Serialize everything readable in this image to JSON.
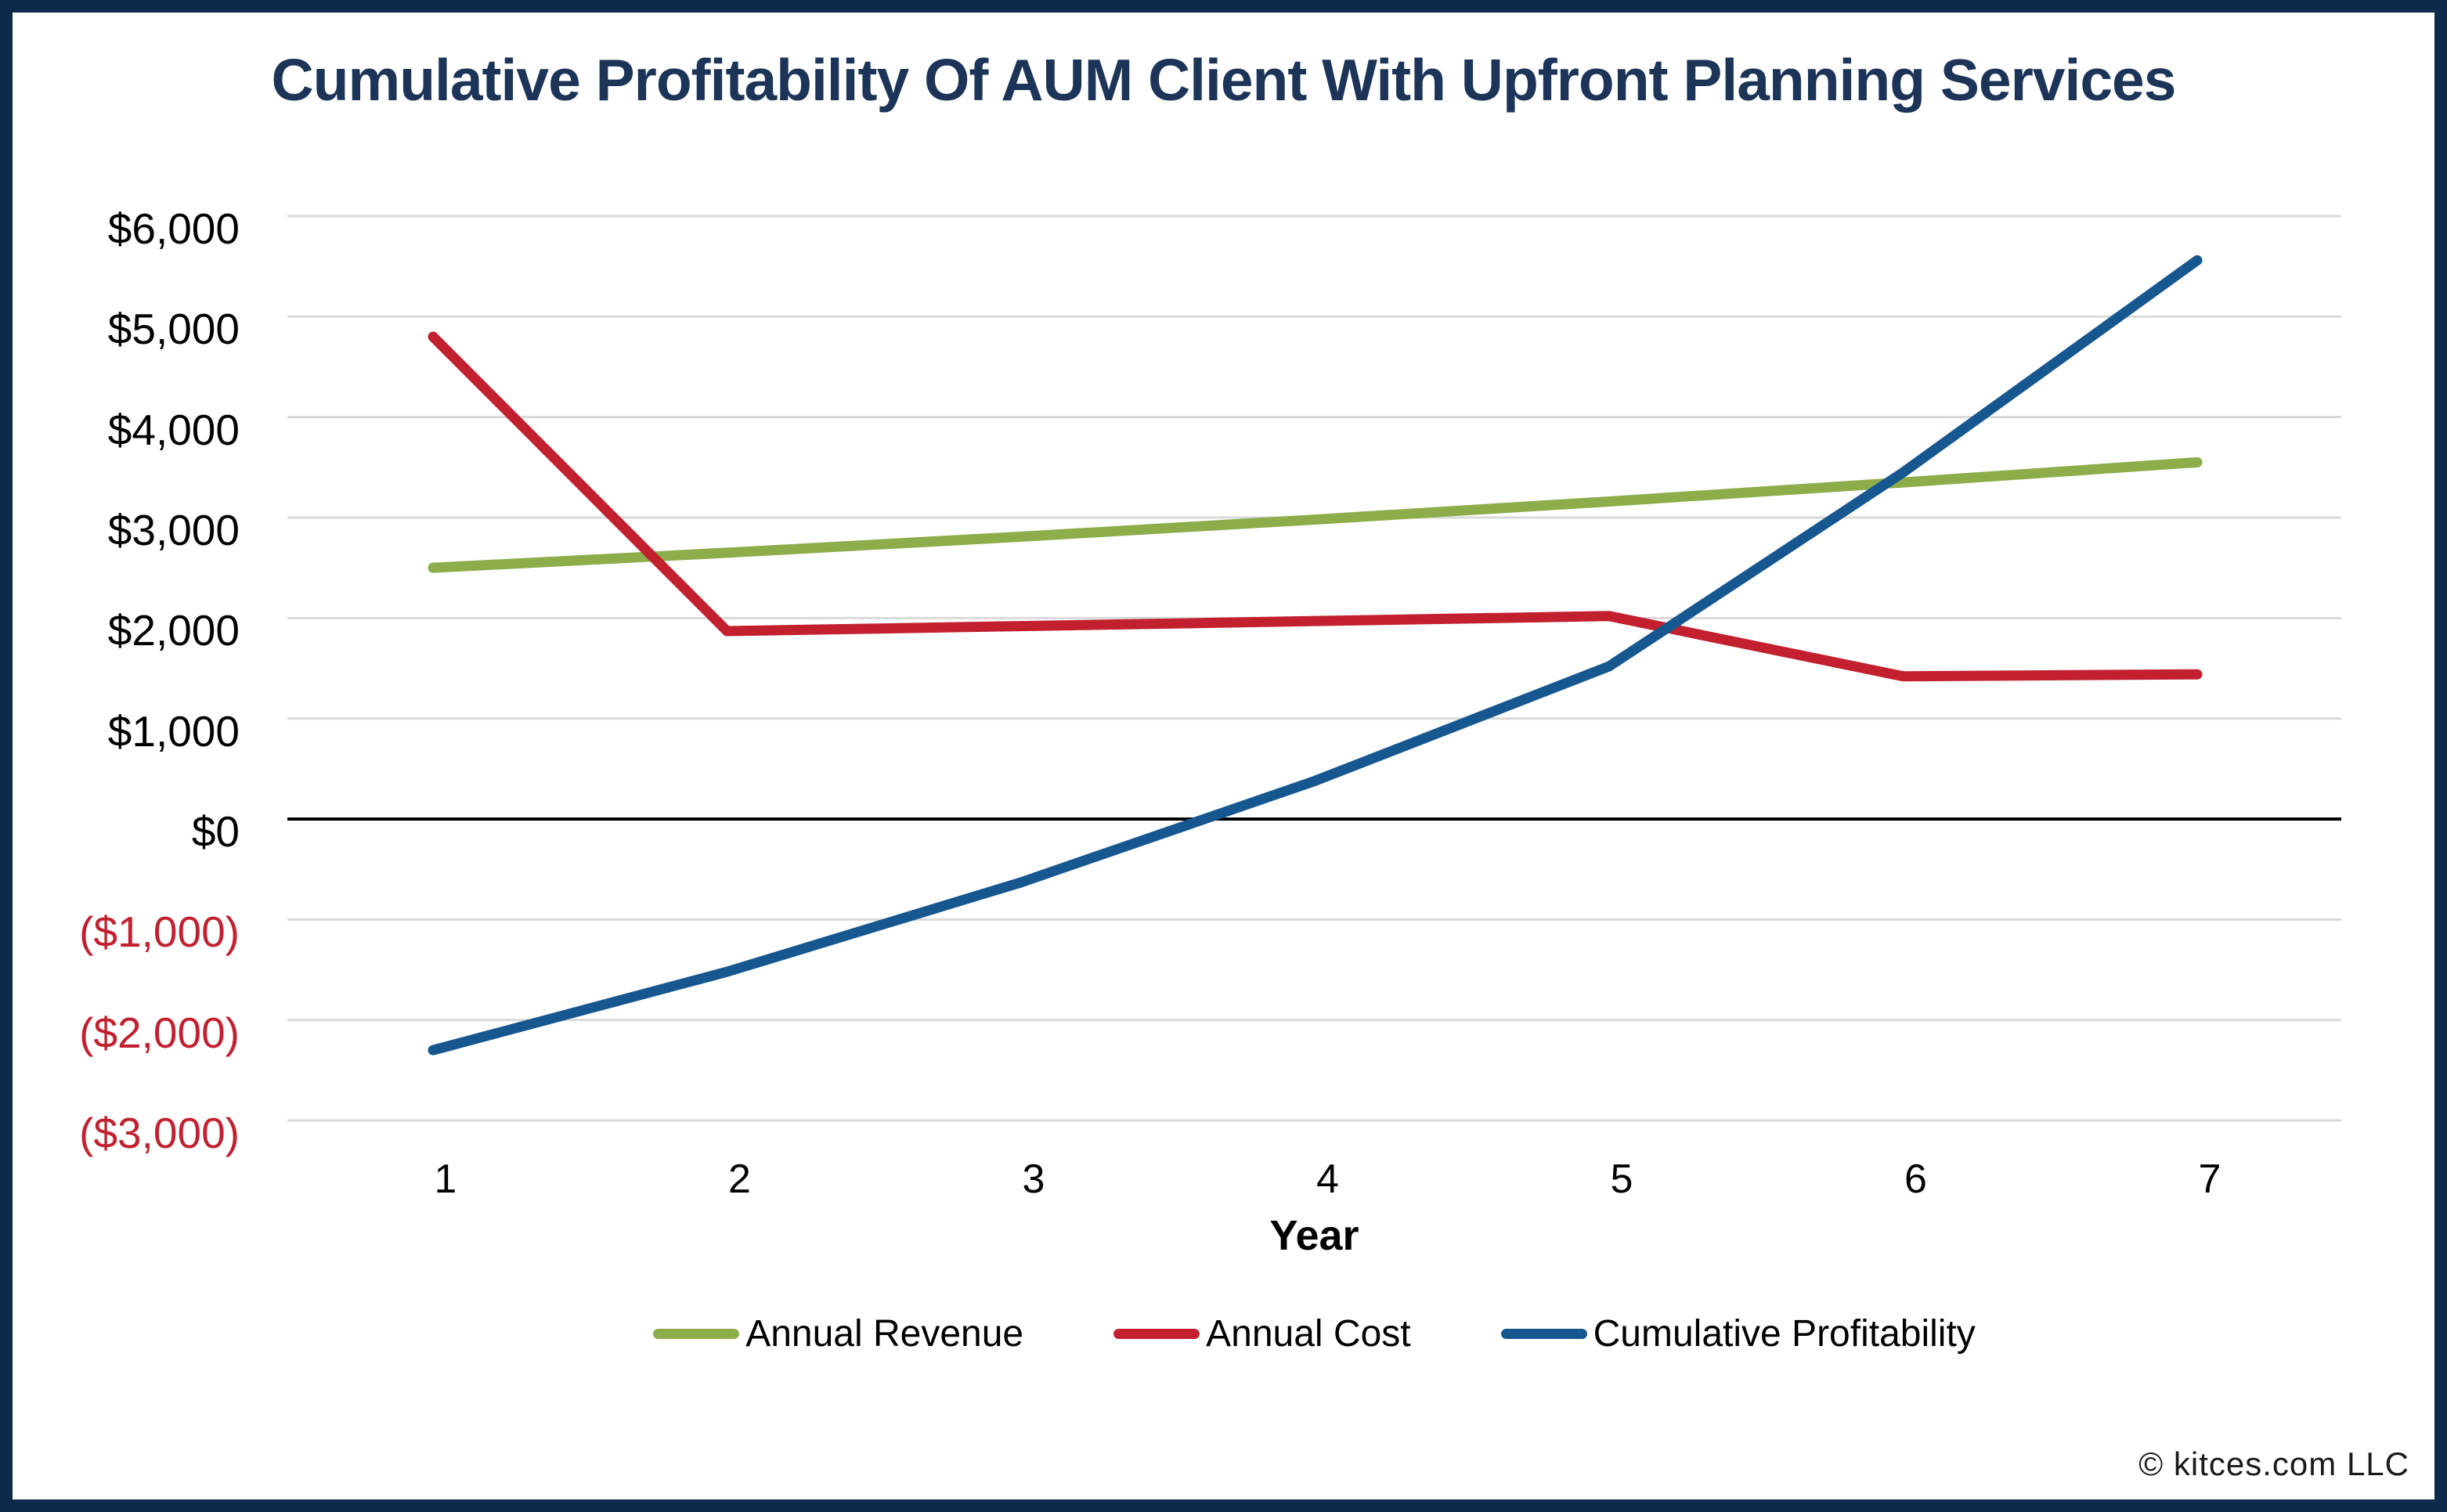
{
  "title": "Cumulative Profitability Of AUM Client With Upfront Planning Services",
  "footer": {
    "copyright": "© kitces.com LLC"
  },
  "colors": {
    "frame_border": "#0d2a4a",
    "title": "#1b3458",
    "gridline": "#d9d9d9",
    "zero_line": "#000000",
    "negative_tick_label": "#c2202f",
    "revenue_green": "#8cad4a",
    "cost_red": "#c2202f",
    "profit_blue": "#17578f"
  },
  "chart_data": {
    "type": "line",
    "title": "Cumulative Profitability Of AUM Client With Upfront Planning Services",
    "xlabel": "Year",
    "ylabel": "",
    "x": [
      1,
      2,
      3,
      4,
      5,
      6,
      7
    ],
    "x_tick_labels": [
      "1",
      "2",
      "3",
      "4",
      "5",
      "6",
      "7"
    ],
    "ylim": [
      -3000,
      6000
    ],
    "y_tick_step": 1000,
    "grid": "horizontal-only",
    "zero_line": true,
    "legend_position": "bottom-center",
    "y_ticks": [
      {
        "value": 6000,
        "label": "$6,000"
      },
      {
        "value": 5000,
        "label": "$5,000"
      },
      {
        "value": 4000,
        "label": "$4,000"
      },
      {
        "value": 3000,
        "label": "$3,000"
      },
      {
        "value": 2000,
        "label": "$2,000"
      },
      {
        "value": 1000,
        "label": "$1,000"
      },
      {
        "value": 0,
        "label": "$0"
      },
      {
        "value": -1000,
        "label": "($1,000)"
      },
      {
        "value": -2000,
        "label": "($2,000)"
      },
      {
        "value": -3000,
        "label": "($3,000)"
      }
    ],
    "series": [
      {
        "name": "Annual Revenue",
        "color": "#8cad4a",
        "values": [
          2500,
          2650,
          2810,
          2980,
          3160,
          3350,
          3550
        ]
      },
      {
        "name": "Annual Cost",
        "color": "#c2202f",
        "values": [
          4800,
          1870,
          1920,
          1970,
          2020,
          1420,
          1440
        ]
      },
      {
        "name": "Cumulative Profitability",
        "color": "#17578f",
        "values": [
          -2300,
          -1520,
          -630,
          380,
          1520,
          3450,
          5560
        ]
      }
    ]
  }
}
